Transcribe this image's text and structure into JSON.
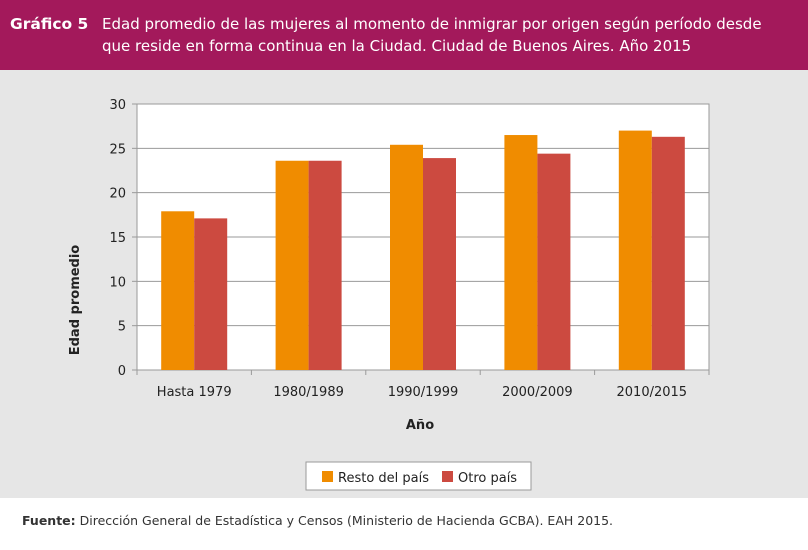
{
  "header": {
    "label": "Gráfico 5",
    "title": "Edad promedio de las mujeres al momento de inmigrar por origen según período desde que reside en forma continua en la Ciudad. Ciudad de Buenos Aires. Año 2015"
  },
  "footer": {
    "source_label": "Fuente:",
    "source_text": " Dirección General de Estadística y Censos (Ministerio de Hacienda GCBA). EAH 2015."
  },
  "colors": {
    "header_bg": "#a3195b",
    "series_1": "#f08c00",
    "series_2": "#cc4a40"
  },
  "chart_data": {
    "type": "bar",
    "categories": [
      "Hasta 1979",
      "1980/1989",
      "1990/1999",
      "2000/2009",
      "2010/2015"
    ],
    "series": [
      {
        "name": "Resto del país",
        "values": [
          17.9,
          23.6,
          25.4,
          26.5,
          27.0
        ],
        "color": "#f08c00"
      },
      {
        "name": "Otro país",
        "values": [
          17.1,
          23.6,
          23.9,
          24.4,
          26.3
        ],
        "color": "#cc4a40"
      }
    ],
    "xlabel": "Año",
    "ylabel": "Edad promedio",
    "ylim": [
      0,
      30
    ],
    "yticks": [
      0,
      5,
      10,
      15,
      20,
      25,
      30
    ],
    "grid": true,
    "legend": "bottom"
  }
}
